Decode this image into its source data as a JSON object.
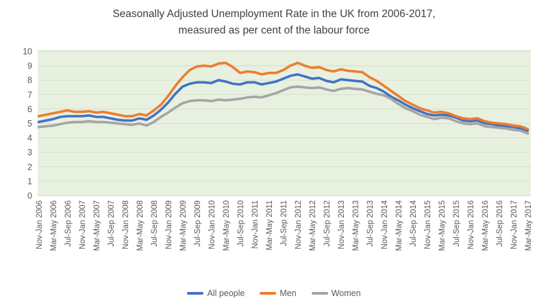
{
  "title": {
    "line1": "Seasonally Adjusted Unemployment Rate in the UK from 2006-2017,",
    "line2": "measured as per cent of the labour force"
  },
  "chart_data": {
    "type": "line",
    "title": "Seasonally Adjusted Unemployment Rate in the UK from 2006-2017, measured as per cent of the labour force",
    "xlabel": "",
    "ylabel": "",
    "ylim": [
      0,
      10
    ],
    "y_ticks": [
      0,
      1,
      2,
      3,
      4,
      5,
      6,
      7,
      8,
      9,
      10
    ],
    "grid": true,
    "legend_position": "bottom",
    "plot_bg_color": "#e8f1e0",
    "grid_color": "#d4dfca",
    "axis_text_color": "#595959",
    "points_per_tick": 2,
    "x_tick_labels": [
      "Nov-Jan 2006",
      "Mar-May 2006",
      "Jul-Sep 2006",
      "Nov-Jan 2007",
      "Mar-May 2007",
      "Jul-Sep 2007",
      "Nov-Jan 2008",
      "Mar-May 2008",
      "Jul-Sep 2008",
      "Nov-Jan 2009",
      "Mar-May 2009",
      "Jul-Sep 2009",
      "Nov-Jan 2010",
      "Mar-May 2010",
      "Jul-Sep 2010",
      "Nov-Jan 2011",
      "Mar-May 2011",
      "Jul-Sep 2011",
      "Nov-Jan 2012",
      "Mar-May 2012",
      "Jul-Sep 2012",
      "Nov-Jan 2013",
      "Mar-May 2013",
      "Jul-Sep 2013",
      "Nov-Jan 2014",
      "Mar-May 2014",
      "Jul-Sep 2014",
      "Nov-Jan 2015",
      "Mar-May 2015",
      "Jul-Sep 2015",
      "Nov-Jan 2016",
      "Mar-May 2016",
      "Jul-Sep 2016",
      "Nov-Jan 2017",
      "Mar-May 2017"
    ],
    "series": [
      {
        "name": "All people",
        "color": "#4472C4",
        "values": [
          5.1,
          5.2,
          5.3,
          5.45,
          5.5,
          5.5,
          5.5,
          5.55,
          5.45,
          5.45,
          5.35,
          5.25,
          5.2,
          5.2,
          5.35,
          5.25,
          5.55,
          5.95,
          6.45,
          7.05,
          7.55,
          7.75,
          7.85,
          7.85,
          7.8,
          8.0,
          7.9,
          7.75,
          7.7,
          7.85,
          7.85,
          7.7,
          7.8,
          7.9,
          8.1,
          8.3,
          8.4,
          8.25,
          8.1,
          8.15,
          7.95,
          7.85,
          8.05,
          8.0,
          7.95,
          7.9,
          7.6,
          7.45,
          7.2,
          6.85,
          6.6,
          6.3,
          6.05,
          5.85,
          5.65,
          5.55,
          5.6,
          5.55,
          5.4,
          5.2,
          5.15,
          5.2,
          5.0,
          4.95,
          4.85,
          4.8,
          4.75,
          4.65,
          4.5
        ]
      },
      {
        "name": "Men",
        "color": "#ED7D31",
        "values": [
          5.5,
          5.6,
          5.7,
          5.8,
          5.9,
          5.8,
          5.8,
          5.85,
          5.75,
          5.8,
          5.7,
          5.6,
          5.5,
          5.5,
          5.65,
          5.55,
          5.9,
          6.3,
          6.9,
          7.6,
          8.2,
          8.7,
          8.95,
          9.0,
          8.95,
          9.15,
          9.2,
          8.9,
          8.5,
          8.6,
          8.55,
          8.4,
          8.5,
          8.5,
          8.7,
          9.0,
          9.2,
          9.0,
          8.85,
          8.9,
          8.7,
          8.6,
          8.75,
          8.65,
          8.6,
          8.55,
          8.2,
          7.95,
          7.6,
          7.25,
          6.9,
          6.55,
          6.3,
          6.05,
          5.9,
          5.75,
          5.8,
          5.7,
          5.5,
          5.35,
          5.3,
          5.35,
          5.15,
          5.05,
          5.0,
          4.95,
          4.85,
          4.8,
          4.6
        ]
      },
      {
        "name": "Women",
        "color": "#A5A5A5",
        "values": [
          4.75,
          4.8,
          4.85,
          4.95,
          5.05,
          5.1,
          5.1,
          5.15,
          5.1,
          5.1,
          5.05,
          5.0,
          4.95,
          4.9,
          5.0,
          4.85,
          5.1,
          5.45,
          5.75,
          6.1,
          6.4,
          6.55,
          6.6,
          6.6,
          6.55,
          6.65,
          6.6,
          6.65,
          6.7,
          6.8,
          6.85,
          6.8,
          6.95,
          7.1,
          7.3,
          7.5,
          7.55,
          7.5,
          7.45,
          7.5,
          7.35,
          7.25,
          7.4,
          7.45,
          7.4,
          7.35,
          7.2,
          7.05,
          6.95,
          6.7,
          6.35,
          6.05,
          5.85,
          5.6,
          5.45,
          5.3,
          5.4,
          5.35,
          5.15,
          5.0,
          4.95,
          5.0,
          4.8,
          4.75,
          4.7,
          4.65,
          4.55,
          4.5,
          4.3
        ]
      }
    ]
  }
}
